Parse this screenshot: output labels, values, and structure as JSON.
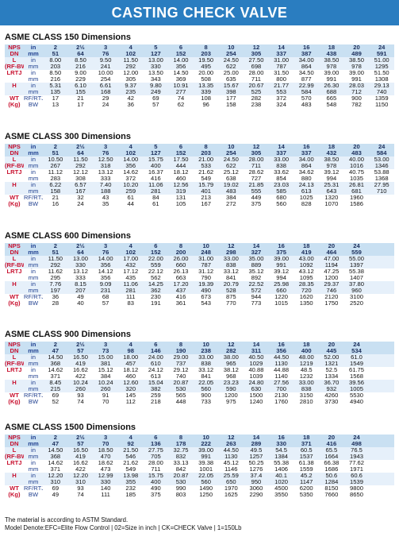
{
  "title": "CASTING CHECK VALVE",
  "sections": [
    {
      "title": "ASME CLASS 150 Dimensions",
      "rows": [
        {
          "label": "NPS",
          "unit": "in",
          "cells": [
            "2",
            "2½",
            "3",
            "4",
            "5",
            "6",
            "8",
            "10",
            "12",
            "14",
            "16",
            "18",
            "20",
            "24"
          ],
          "hdr": true
        },
        {
          "label": "DN",
          "unit": "mm",
          "cells": [
            "51",
            "64",
            "76",
            "102",
            "127",
            "152",
            "203",
            "254",
            "305",
            "337",
            "387",
            "438",
            "489",
            "591"
          ],
          "hdr": true
        },
        {
          "label": "L",
          "unit": "in",
          "cells": [
            "8.00",
            "8.50",
            "9.50",
            "11.50",
            "13.00",
            "14.00",
            "19.50",
            "24.50",
            "27.50",
            "31.00",
            "34.00",
            "38.50",
            "38.50",
            "51.00"
          ]
        },
        {
          "label": "(RF-BW)",
          "unit": "mm",
          "cells": [
            "203",
            "216",
            "241",
            "292",
            "330",
            "356",
            "495",
            "622",
            "698",
            "787",
            "864",
            "978",
            "978",
            "1295"
          ]
        },
        {
          "label": "LRTJ",
          "unit": "in",
          "cells": [
            "8.50",
            "9.00",
            "10.00",
            "12.00",
            "13.50",
            "14.50",
            "20.00",
            "25.00",
            "28.00",
            "31.50",
            "34.50",
            "39.00",
            "39.00",
            "51.50"
          ]
        },
        {
          "label": "",
          "unit": "mm",
          "cells": [
            "216",
            "229",
            "254",
            "305",
            "343",
            "369",
            "508",
            "635",
            "711",
            "800",
            "877",
            "991",
            "991",
            "1308"
          ]
        },
        {
          "label": "H",
          "unit": "in",
          "cells": [
            "5.31",
            "6.10",
            "6.61",
            "9.37",
            "9.80",
            "10.91",
            "13.35",
            "15.67",
            "20.67",
            "21.77",
            "22.99",
            "26.30",
            "28.03",
            "29.13"
          ]
        },
        {
          "label": "",
          "unit": "mm",
          "cells": [
            "135",
            "155",
            "168",
            "235",
            "249",
            "277",
            "339",
            "398",
            "525",
            "553",
            "584",
            "688",
            "712",
            "740"
          ]
        },
        {
          "label": "WT",
          "unit": "RF/RTJ",
          "cells": [
            "17",
            "21",
            "29",
            "42",
            "69",
            "74",
            "108",
            "177",
            "282",
            "372",
            "570",
            "665",
            "900",
            "1359"
          ]
        },
        {
          "label": "(Kg)",
          "unit": "BW",
          "cells": [
            "13",
            "17",
            "24",
            "36",
            "57",
            "62",
            "96",
            "158",
            "238",
            "324",
            "483",
            "548",
            "782",
            "1150"
          ]
        }
      ]
    },
    {
      "title": "ASME CLASS 300 Dimensions",
      "rows": [
        {
          "label": "NPS",
          "unit": "in",
          "cells": [
            "2",
            "2½",
            "3",
            "4",
            "5",
            "6",
            "8",
            "10",
            "12",
            "14",
            "16",
            "18",
            "20",
            "24"
          ],
          "hdr": true
        },
        {
          "label": "DN",
          "unit": "mm",
          "cells": [
            "51",
            "64",
            "76",
            "102",
            "127",
            "152",
            "203",
            "254",
            "305",
            "337",
            "337",
            "432",
            "483",
            "584"
          ],
          "hdr": true
        },
        {
          "label": "L",
          "unit": "in",
          "cells": [
            "10.50",
            "11.50",
            "12.50",
            "14.00",
            "15.75",
            "17.50",
            "21.00",
            "24.50",
            "28.00",
            "33.00",
            "34.00",
            "38.50",
            "40.00",
            "53.00"
          ]
        },
        {
          "label": "(RF-BW)",
          "unit": "mm",
          "cells": [
            "267",
            "292",
            "318",
            "356",
            "400",
            "444",
            "533",
            "622",
            "711",
            "838",
            "864",
            "978",
            "1016",
            "1346"
          ]
        },
        {
          "label": "LRTJ",
          "unit": "in",
          "cells": [
            "11.12",
            "12.12",
            "13.12",
            "14.62",
            "16.37",
            "18.12",
            "21.62",
            "25.12",
            "28.62",
            "33.62",
            "34.62",
            "39.12",
            "40.75",
            "53.88"
          ]
        },
        {
          "label": "",
          "unit": "mm",
          "cells": [
            "283",
            "308",
            "333",
            "372",
            "416",
            "460",
            "549",
            "638",
            "727",
            "854",
            "880",
            "994",
            "1035",
            "1368"
          ]
        },
        {
          "label": "H",
          "unit": "in",
          "cells": [
            "6.22",
            "6.57",
            "7.40",
            "10.20",
            "11.06",
            "12.56",
            "15.79",
            "19.02",
            "21.85",
            "23.03",
            "24.13",
            "25.31",
            "26.81",
            "27.95"
          ]
        },
        {
          "label": "",
          "unit": "mm",
          "cells": [
            "158",
            "167",
            "188",
            "259",
            "281",
            "319",
            "401",
            "483",
            "555",
            "585",
            "613",
            "643",
            "681",
            "710"
          ]
        },
        {
          "label": "WT",
          "unit": "RF/RTJ",
          "cells": [
            "21",
            "32",
            "43",
            "61",
            "84",
            "131",
            "213",
            "384",
            "449",
            "680",
            "1025",
            "1320",
            "1960",
            ""
          ]
        },
        {
          "label": "(Kg)",
          "unit": "BW",
          "cells": [
            "16",
            "24",
            "35",
            "44",
            "61",
            "105",
            "167",
            "272",
            "375",
            "560",
            "828",
            "1070",
            "1586",
            ""
          ]
        }
      ]
    },
    {
      "title": "ASME CLASS 600 Dimensions",
      "rows": [
        {
          "label": "NPS",
          "unit": "in",
          "cells": [
            "2",
            "2½",
            "3",
            "4",
            "6",
            "8",
            "10",
            "12",
            "14",
            "16",
            "18",
            "20",
            "24",
            ""
          ],
          "hdr": true
        },
        {
          "label": "DN",
          "unit": "mm",
          "cells": [
            "51",
            "64",
            "76",
            "102",
            "152",
            "200",
            "248",
            "298",
            "327",
            "375",
            "419",
            "464",
            "559",
            ""
          ],
          "hdr": true
        },
        {
          "label": "L",
          "unit": "in",
          "cells": [
            "11.50",
            "13.00",
            "14.00",
            "17.00",
            "22.00",
            "26.00",
            "31.00",
            "33.00",
            "35.00",
            "39.00",
            "43.00",
            "47.00",
            "55.00",
            ""
          ]
        },
        {
          "label": "(RF-BW)",
          "unit": "mm",
          "cells": [
            "292",
            "330",
            "356",
            "432",
            "559",
            "660",
            "787",
            "838",
            "889",
            "991",
            "1092",
            "1194",
            "1397",
            ""
          ]
        },
        {
          "label": "LRTJ",
          "unit": "in",
          "cells": [
            "11.62",
            "13.12",
            "14.12",
            "17.12",
            "22.12",
            "26.13",
            "31.12",
            "33.12",
            "35.12",
            "39.12",
            "43.12",
            "47.25",
            "55.38",
            ""
          ]
        },
        {
          "label": "",
          "unit": "mm",
          "cells": [
            "295",
            "333",
            "356",
            "435",
            "562",
            "663",
            "790",
            "841",
            "892",
            "994",
            "1095",
            "1200",
            "1407",
            ""
          ]
        },
        {
          "label": "H",
          "unit": "in",
          "cells": [
            "7.76",
            "8.15",
            "9.09",
            "11.06",
            "14.25",
            "17.20",
            "19.39",
            "20.79",
            "22.52",
            "25.98",
            "28.35",
            "29.37",
            "37.80",
            ""
          ]
        },
        {
          "label": "",
          "unit": "mm",
          "cells": [
            "197",
            "207",
            "231",
            "281",
            "362",
            "437",
            "490",
            "528",
            "572",
            "660",
            "720",
            "746",
            "960",
            ""
          ]
        },
        {
          "label": "WT",
          "unit": "RF/RTJ",
          "cells": [
            "36",
            "49",
            "68",
            "111",
            "230",
            "416",
            "673",
            "875",
            "944",
            "1220",
            "1620",
            "2120",
            "3100",
            ""
          ]
        },
        {
          "label": "(Kg)",
          "unit": "BW",
          "cells": [
            "28",
            "40",
            "57",
            "83",
            "191",
            "361",
            "543",
            "770",
            "773",
            "1015",
            "1350",
            "1750",
            "2520",
            ""
          ]
        }
      ]
    },
    {
      "title": "ASME CLASS 900 Dimensions",
      "rows": [
        {
          "label": "NPS",
          "unit": "in",
          "cells": [
            "2",
            "2½",
            "3",
            "4",
            "6",
            "8",
            "10",
            "12",
            "14",
            "16",
            "18",
            "20",
            "24",
            ""
          ],
          "hdr": true
        },
        {
          "label": "DN",
          "unit": "mm",
          "cells": [
            "47",
            "57",
            "73",
            "98",
            "146",
            "190",
            "238",
            "282",
            "311",
            "356",
            "400",
            "445",
            "534",
            ""
          ],
          "hdr": true
        },
        {
          "label": "L",
          "unit": "in",
          "cells": [
            "14.50",
            "16.50",
            "15.00",
            "18.00",
            "24.00",
            "29.00",
            "33.00",
            "38.00",
            "40.50",
            "44.50",
            "48.00",
            "52.00",
            "61.0",
            ""
          ]
        },
        {
          "label": "(RF-BW)",
          "unit": "mm",
          "cells": [
            "368",
            "419",
            "381",
            "457",
            "610",
            "737",
            "838",
            "965",
            "1029",
            "1130",
            "1219",
            "1321",
            "1549",
            ""
          ]
        },
        {
          "label": "LRTJ",
          "unit": "in",
          "cells": [
            "14.62",
            "16.62",
            "15.12",
            "18.12",
            "24.12",
            "29.12",
            "33.12",
            "38.12",
            "40.88",
            "44.88",
            "48.5",
            "52.5",
            "61.75",
            ""
          ]
        },
        {
          "label": "",
          "unit": "mm",
          "cells": [
            "371",
            "422",
            "384",
            "460",
            "613",
            "740",
            "841",
            "968",
            "1039",
            "1140",
            "1232",
            "1334",
            "1568",
            ""
          ]
        },
        {
          "label": "H",
          "unit": "in",
          "cells": [
            "8.45",
            "10.24",
            "10.24",
            "12.60",
            "15.04",
            "20.87",
            "22.05",
            "23.23",
            "24.80",
            "27.56",
            "33.00",
            "36.70",
            "39.56",
            ""
          ]
        },
        {
          "label": "",
          "unit": "mm",
          "cells": [
            "215",
            "260",
            "260",
            "320",
            "382",
            "530",
            "560",
            "590",
            "630",
            "700",
            "838",
            "932",
            "1005",
            ""
          ]
        },
        {
          "label": "WT",
          "unit": "RF/RTJ",
          "cells": [
            "69",
            "93",
            "91",
            "145",
            "259",
            "565",
            "900",
            "1200",
            "1500",
            "2130",
            "3150",
            "4260",
            "5530",
            ""
          ]
        },
        {
          "label": "(Kg)",
          "unit": "BW",
          "cells": [
            "52",
            "74",
            "70",
            "112",
            "218",
            "448",
            "733",
            "975",
            "1240",
            "1760",
            "2810",
            "3730",
            "4940",
            ""
          ]
        }
      ]
    },
    {
      "title": "ASME CLASS 1500 Dimensions",
      "rows": [
        {
          "label": "NPS",
          "unit": "in",
          "cells": [
            "2",
            "2½",
            "3",
            "4",
            "6",
            "8",
            "10",
            "12",
            "14",
            "16",
            "18",
            "20",
            "24",
            ""
          ],
          "hdr": true
        },
        {
          "label": "DN",
          "unit": "mm",
          "cells": [
            "47",
            "57",
            "70",
            "92",
            "136",
            "178",
            "222",
            "263",
            "289",
            "330",
            "371",
            "416",
            "498",
            ""
          ],
          "hdr": true
        },
        {
          "label": "L",
          "unit": "in",
          "cells": [
            "14.50",
            "16.50",
            "18.50",
            "21.50",
            "27.75",
            "32.75",
            "39.00",
            "44.50",
            "49.5",
            "54.5",
            "60.5",
            "65.5",
            "76.5",
            ""
          ]
        },
        {
          "label": "(RF-BW)",
          "unit": "mm",
          "cells": [
            "368",
            "419",
            "470",
            "546",
            "705",
            "832",
            "991",
            "1130",
            "1257",
            "1384",
            "1537",
            "1664",
            "1943",
            ""
          ]
        },
        {
          "label": "LRTJ",
          "unit": "in",
          "cells": [
            "14.62",
            "16.62",
            "18.62",
            "21.62",
            "28.00",
            "33.13",
            "39.38",
            "45.12",
            "50.25",
            "55.38",
            "61.38",
            "66.38",
            "77.62",
            ""
          ]
        },
        {
          "label": "",
          "unit": "mm",
          "cells": [
            "371",
            "422",
            "473",
            "549",
            "711",
            "842",
            "1001",
            "1146",
            "1276",
            "1406",
            "1559",
            "1686",
            "1971",
            ""
          ]
        },
        {
          "label": "H",
          "unit": "in",
          "cells": [
            "12.20",
            "12.20",
            "12.99",
            "13.98",
            "15.75",
            "20.87",
            "22.05",
            "25.59",
            "37.4",
            "40.1",
            "45.2",
            "50.6",
            "60.6",
            ""
          ]
        },
        {
          "label": "",
          "unit": "mm",
          "cells": [
            "310",
            "310",
            "330",
            "355",
            "400",
            "530",
            "560",
            "650",
            "950",
            "1020",
            "1147",
            "1284",
            "1539",
            ""
          ]
        },
        {
          "label": "WT",
          "unit": "RF/RTJ",
          "cells": [
            "69",
            "93",
            "140",
            "232",
            "490",
            "990",
            "1490",
            "1970",
            "3060",
            "4500",
            "6200",
            "8150",
            "9800",
            ""
          ]
        },
        {
          "label": "(Kg)",
          "unit": "BW",
          "cells": [
            "49",
            "74",
            "111",
            "185",
            "375",
            "803",
            "1250",
            "1625",
            "2290",
            "3550",
            "5350",
            "7660",
            "8650",
            ""
          ]
        }
      ]
    }
  ],
  "notes": [
    "The material is according to ASTM Standard.",
    "Model Denote:EFC=Elite Flow Control | 02=Size in inch | CK=CHECK Valve | 1=150Lb"
  ]
}
